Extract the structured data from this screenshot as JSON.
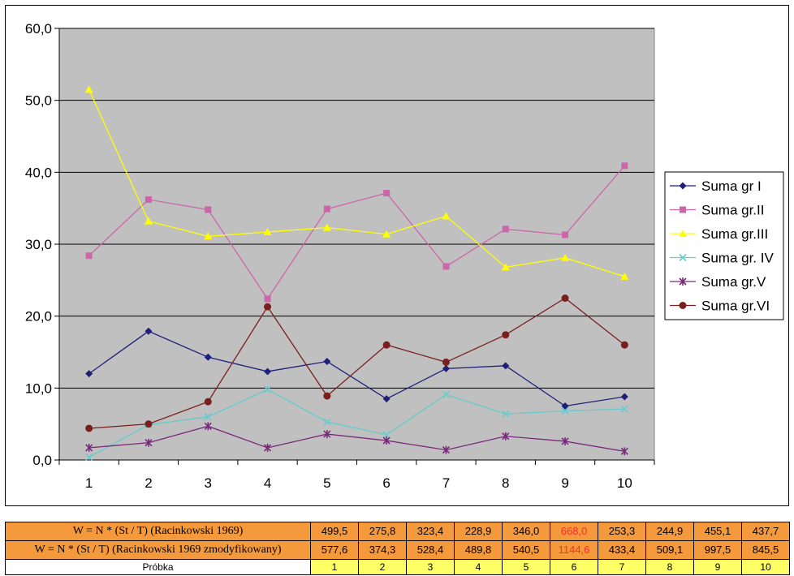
{
  "chart_data": {
    "type": "line",
    "title": "",
    "xlabel": "",
    "ylabel": "",
    "categories": [
      "1",
      "2",
      "3",
      "4",
      "5",
      "6",
      "7",
      "8",
      "9",
      "10"
    ],
    "ylim": [
      0,
      60
    ],
    "yticks": [
      "0,0",
      "10,0",
      "20,0",
      "30,0",
      "40,0",
      "50,0",
      "60,0"
    ],
    "grid": true,
    "legend_position": "right",
    "plot_background": "#c0c0c0",
    "series": [
      {
        "name": "Suma gr I",
        "color": "#1f1f7a",
        "marker": "diamond",
        "values": [
          12.0,
          17.9,
          14.3,
          12.3,
          13.7,
          8.5,
          12.7,
          13.1,
          7.5,
          8.8
        ]
      },
      {
        "name": "Suma gr.II",
        "color": "#cc66aa",
        "marker": "square",
        "values": [
          28.4,
          36.2,
          34.8,
          22.4,
          34.9,
          37.1,
          26.9,
          32.1,
          31.3,
          40.9
        ]
      },
      {
        "name": "Suma gr.III",
        "color": "#ffff00",
        "marker": "triangle",
        "values": [
          51.5,
          33.2,
          31.1,
          31.7,
          32.3,
          31.4,
          33.9,
          26.8,
          28.1,
          25.5
        ]
      },
      {
        "name": "Suma gr. IV",
        "color": "#66cccc",
        "marker": "x",
        "values": [
          0.4,
          4.9,
          6.0,
          9.8,
          5.3,
          3.5,
          9.1,
          6.4,
          6.8,
          7.1
        ]
      },
      {
        "name": "Suma gr.V",
        "color": "#7a2a7a",
        "marker": "star",
        "values": [
          1.7,
          2.4,
          4.7,
          1.7,
          3.6,
          2.7,
          1.4,
          3.3,
          2.6,
          1.2
        ]
      },
      {
        "name": "Suma gr.VI",
        "color": "#7a1f1f",
        "marker": "circle",
        "values": [
          4.4,
          5.0,
          8.1,
          21.3,
          8.9,
          16.0,
          13.6,
          17.4,
          22.5,
          16.0
        ]
      }
    ]
  },
  "table": {
    "rows": [
      {
        "label": "W = N * (St / T) (Racinkowski 1969)",
        "values": [
          "499,5",
          "275,8",
          "323,4",
          "228,9",
          "346,0",
          "668,0",
          "253,3",
          "244,9",
          "455,1",
          "437,7"
        ]
      },
      {
        "label": "W = N * (St / T) (Racinkowski 1969 zmodyfikowany)",
        "values": [
          "577,6",
          "374,3",
          "528,4",
          "489,8",
          "540,5",
          "1144,6",
          "433,4",
          "509,1",
          "997,5",
          "845,5"
        ]
      },
      {
        "label": "Próbka",
        "values": [
          "1",
          "2",
          "3",
          "4",
          "5",
          "6",
          "7",
          "8",
          "9",
          "10"
        ]
      }
    ],
    "highlight_column": 5,
    "highlight_color": "#ff2a2a"
  }
}
